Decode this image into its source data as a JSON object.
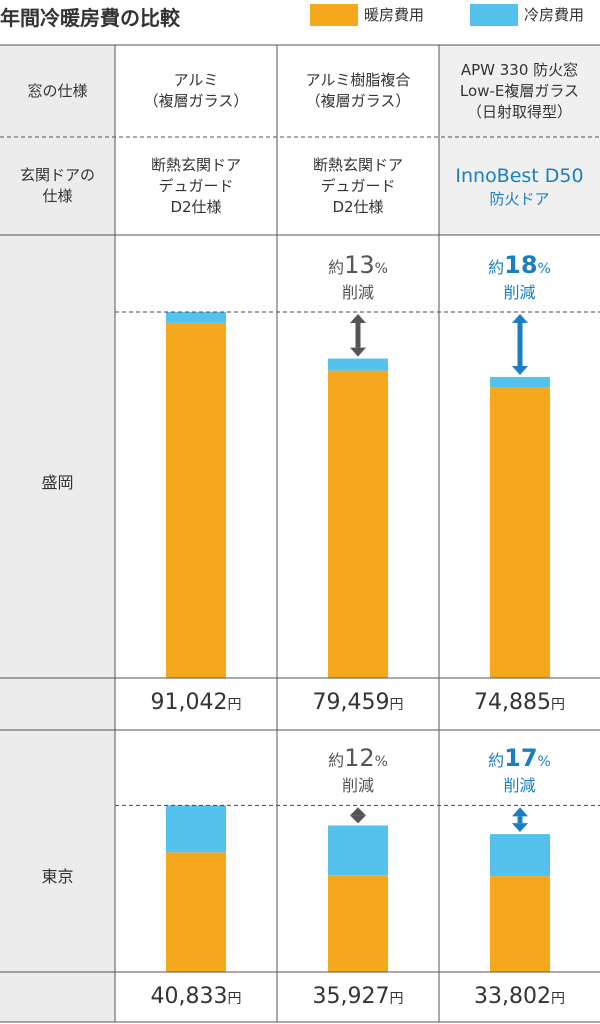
{
  "title": "年間冷暖房費の比較",
  "chart_data": {
    "type": "bar",
    "series": [
      {
        "name": "暖房費用",
        "color": "#f5a81c"
      },
      {
        "name": "冷房費用",
        "color": "#55c2ee"
      }
    ],
    "highlight_color": "#1a7fc1",
    "highlight": [
      false,
      false,
      true
    ],
    "row_labels": [
      "窓の仕様",
      "玄関ドアの\n仕様"
    ],
    "columns": [
      {
        "window": [
          "アルミ",
          "（複層ガラス）"
        ],
        "door": [
          "断熱玄関ドア",
          "デュガード",
          "D2仕様"
        ]
      },
      {
        "window": [
          "アルミ樹脂複合",
          "（複層ガラス）"
        ],
        "door": [
          "断熱玄関ドア",
          "デュガード",
          "D2仕様"
        ]
      },
      {
        "window": [
          "APW 330 防火窓",
          "Low-E複層ガラス",
          "（日射取得型）"
        ],
        "door": [
          "InnoBest  D50",
          "防火ドア"
        ]
      }
    ],
    "unit": "円",
    "reduction_prefix": "約",
    "reduction_unit": "%",
    "reduction_suffix": "削減",
    "cities": [
      {
        "name": "盛岡",
        "ylim": [
          0,
          100000
        ],
        "values": [
          [
            88342,
            76459,
            72385
          ],
          [
            2700,
            3000,
            2500
          ]
        ],
        "totals": [
          {
            "value": 91042,
            "label": "91,042"
          },
          {
            "value": 79459,
            "label": "79,459"
          },
          {
            "value": 74885,
            "label": "74,885"
          }
        ],
        "reductions": [
          null,
          13,
          18
        ]
      },
      {
        "name": "東京",
        "ylim": [
          0,
          50000
        ],
        "values": [
          [
            29333,
            23727,
            23502
          ],
          [
            11500,
            12200,
            10300
          ]
        ],
        "totals": [
          {
            "value": 40833,
            "label": "40,833"
          },
          {
            "value": 35927,
            "label": "35,927"
          },
          {
            "value": 33802,
            "label": "33,802"
          }
        ],
        "reductions": [
          null,
          12,
          17
        ]
      }
    ]
  }
}
